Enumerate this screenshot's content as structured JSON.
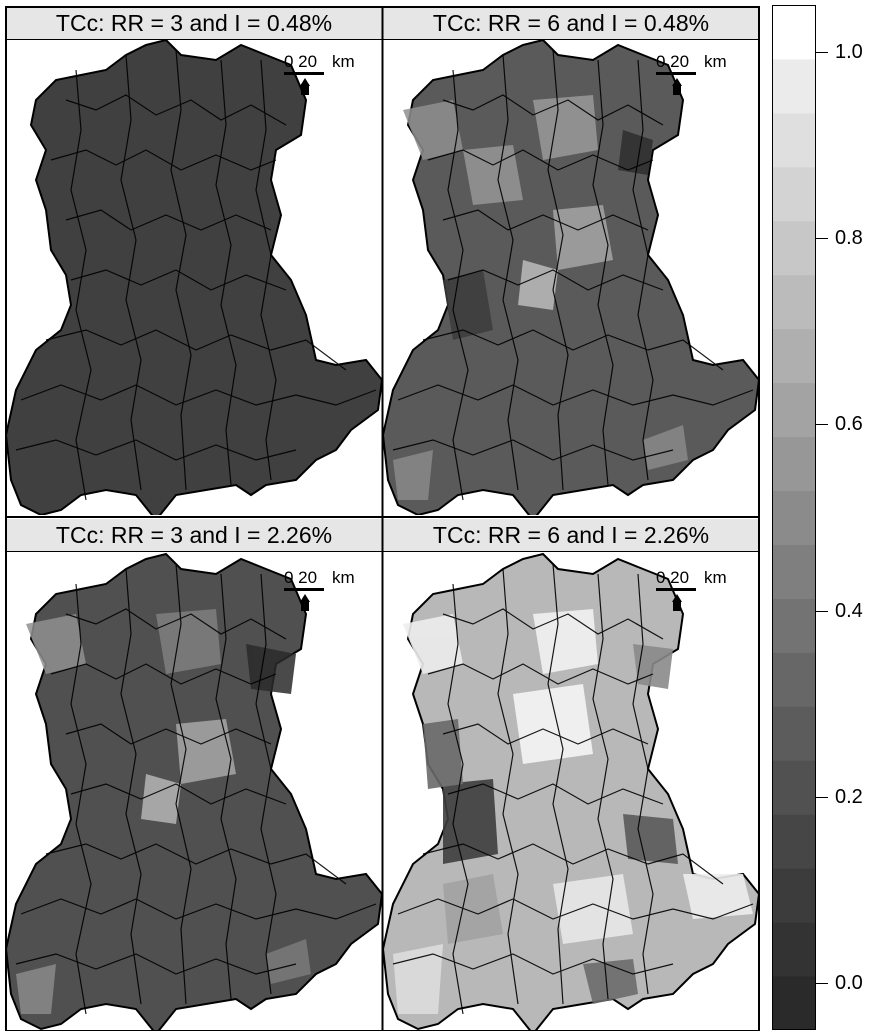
{
  "panels": [
    {
      "title": "TCc: RR = 3 and I = 0.48%",
      "scale": {
        "numbers": "0 20",
        "unit": "km"
      }
    },
    {
      "title": "TCc: RR = 6 and I = 0.48%",
      "scale": {
        "numbers": "0 20",
        "unit": "km"
      }
    },
    {
      "title": "TCc: RR = 3 and I = 2.26%",
      "scale": {
        "numbers": "0 20",
        "unit": "km"
      }
    },
    {
      "title": "TCc: RR = 6 and I = 2.26%",
      "scale": {
        "numbers": "0 20",
        "unit": "km"
      }
    }
  ],
  "legend": {
    "ticks": [
      "1.0",
      "0.8",
      "0.6",
      "0.4",
      "0.2",
      "0.0"
    ],
    "tick_values": [
      1.0,
      0.8,
      0.6,
      0.4,
      0.2,
      0.0
    ],
    "range": [
      -0.05,
      1.05
    ],
    "colors": [
      "#2a2a2a",
      "#333333",
      "#3c3c3c",
      "#464646",
      "#515151",
      "#5c5c5c",
      "#676767",
      "#737373",
      "#7f7f7f",
      "#8b8b8b",
      "#979797",
      "#a3a3a3",
      "#afafaf",
      "#bbbbbb",
      "#c7c7c7",
      "#d3d3d3",
      "#dfdfdf",
      "#ebebeb",
      "#ffffff"
    ]
  },
  "map_fill": {
    "panel_1": "#404040",
    "panel_2": "#5a5a5a",
    "panel_3": "#505050",
    "panel_4": "#b8b8b8"
  }
}
